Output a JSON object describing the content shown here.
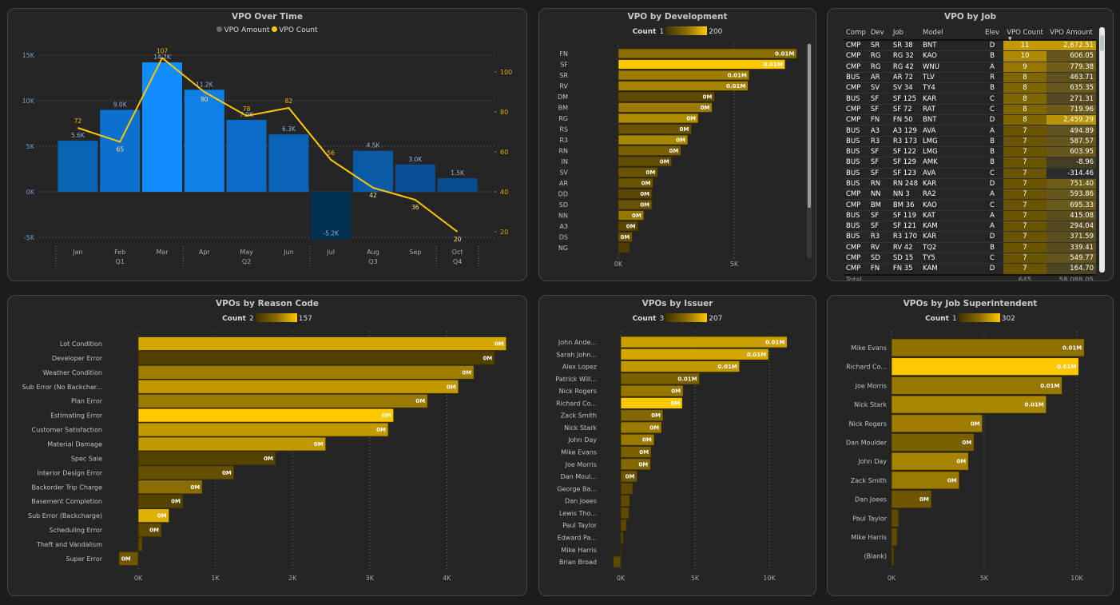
{
  "over_time": {
    "title": "VPO Over Time",
    "legend": [
      {
        "label": "VPO Amount",
        "color": "#6b6b6b"
      },
      {
        "label": "VPO Count",
        "color": "#ffc800"
      }
    ],
    "chart_data": {
      "type": "bar+line",
      "categories": [
        "Jan",
        "Feb",
        "Mar",
        "Apr",
        "May",
        "Jun",
        "Jul",
        "Aug",
        "Sep",
        "Oct"
      ],
      "quarters": [
        {
          "label": "Q1",
          "months": [
            "Jan",
            "Feb",
            "Mar"
          ]
        },
        {
          "label": "Q2",
          "months": [
            "Apr",
            "May",
            "Jun"
          ]
        },
        {
          "label": "Q3",
          "months": [
            "Jul",
            "Aug",
            "Sep"
          ]
        },
        {
          "label": "Q4",
          "months": [
            "Oct"
          ]
        }
      ],
      "series": [
        {
          "name": "VPO Amount",
          "type": "bar",
          "axis": "left",
          "values": [
            5600,
            9000,
            14200,
            11200,
            7900,
            6300,
            -5200,
            4500,
            3000,
            1500
          ],
          "labels": [
            "5.6K",
            "9.0K",
            "14.2K",
            "11.2K",
            "7.9K",
            "6.3K",
            "-5.2K",
            "4.5K",
            "3.0K",
            "1.5K"
          ],
          "colors": [
            "#0a64b4",
            "#0c70cf",
            "#118dff",
            "#0f7fe8",
            "#0b6bc6",
            "#0a63b6",
            "#00304f",
            "#0a5aa6",
            "#095098",
            "#084c8e"
          ]
        },
        {
          "name": "VPO Count",
          "type": "line",
          "axis": "right",
          "values": [
            72,
            65,
            107,
            90,
            78,
            82,
            56,
            42,
            36,
            20
          ],
          "color": "#ffc800"
        }
      ],
      "left_axis": {
        "ticks": [
          15000,
          10000,
          5000,
          0,
          -5000
        ],
        "tick_labels": [
          "15K",
          "10K",
          "5K",
          "0K",
          "-5K"
        ],
        "range": [
          -5000,
          15000
        ]
      },
      "right_axis": {
        "ticks": [
          100,
          80,
          60,
          40,
          20
        ],
        "tick_labels": [
          "100",
          "80",
          "60",
          "40",
          "20"
        ],
        "range": [
          14,
          106
        ]
      },
      "grid": true
    }
  },
  "by_development": {
    "title": "VPO by Development",
    "legend": {
      "label": "Count",
      "min": "1",
      "max": "200"
    },
    "chart_data": {
      "type": "bar",
      "orientation": "horizontal",
      "categories": [
        "FN",
        "SF",
        "SR",
        "RV",
        "DM",
        "BM",
        "RG",
        "RS",
        "R3",
        "RN",
        "IN",
        "SV",
        "AR",
        "DD",
        "SD",
        "NN",
        "A3",
        "DS",
        "NG"
      ],
      "values": [
        7700,
        7200,
        5650,
        5600,
        4150,
        4050,
        3450,
        3150,
        3000,
        2700,
        2300,
        1700,
        1500,
        1450,
        1450,
        1100,
        850,
        600,
        480
      ],
      "data_labels": [
        "0.01M",
        "0.01M",
        "0.01M",
        "0.01M",
        "0M",
        "0M",
        "0M",
        "0M",
        "0M",
        "0M",
        "0M",
        "0M",
        "0M",
        "0M",
        "0M",
        "0M",
        "0M",
        "0M",
        ""
      ],
      "colors": [
        "#8a6d00",
        "#ffc800",
        "#9e7d00",
        "#a68400",
        "#5e4a00",
        "#9a7a00",
        "#b08c00",
        "#6a5300",
        "#a88700",
        "#7a6000",
        "#624d00",
        "#6a5300",
        "#6a5300",
        "#5a4600",
        "#6a5300",
        "#967700",
        "#5a4600",
        "#6a5300",
        "#4e3e00"
      ],
      "x_ticks": [
        0,
        5000
      ],
      "x_tick_labels": [
        "0K",
        "5K"
      ],
      "xlim": [
        0,
        8000
      ],
      "grid": true
    }
  },
  "by_job": {
    "title": "VPO by Job",
    "columns": [
      "Comp",
      "Dev",
      "Job",
      "Model",
      "Elev",
      "VPO Count",
      "VPO Amount"
    ],
    "sort_column": "VPO Count",
    "sort_direction": "descending",
    "rows": [
      [
        "CMP",
        "SR",
        "SR 38",
        "BNT",
        "D",
        11,
        "2,672.51"
      ],
      [
        "CMP",
        "RG",
        "RG 32",
        "KAO",
        "B",
        10,
        "606.05"
      ],
      [
        "CMP",
        "RG",
        "RG 42",
        "WNU",
        "A",
        9,
        "779.38"
      ],
      [
        "BUS",
        "AR",
        "AR 72",
        "TLV",
        "R",
        8,
        "463.71"
      ],
      [
        "CMP",
        "SV",
        "SV 34",
        "TY4",
        "B",
        8,
        "635.35"
      ],
      [
        "BUS",
        "SF",
        "SF 125",
        "KAR",
        "C",
        8,
        "271.31"
      ],
      [
        "CMP",
        "SF",
        "SF 72",
        "RAT",
        "C",
        8,
        "719.96"
      ],
      [
        "CMP",
        "FN",
        "FN 50",
        "BNT",
        "D",
        8,
        "2,459.29"
      ],
      [
        "BUS",
        "A3",
        "A3 129",
        "AVA",
        "A",
        7,
        "494.89"
      ],
      [
        "BUS",
        "R3",
        "R3 173",
        "LMG",
        "B",
        7,
        "587.57"
      ],
      [
        "BUS",
        "SF",
        "SF 122",
        "LMG",
        "B",
        7,
        "603.95"
      ],
      [
        "BUS",
        "SF",
        "SF 129",
        "AMK",
        "B",
        7,
        "-8.96"
      ],
      [
        "BUS",
        "SF",
        "SF 123",
        "AVA",
        "C",
        7,
        "-314.46"
      ],
      [
        "BUS",
        "RN",
        "RN 248",
        "KAR",
        "D",
        7,
        "751.40"
      ],
      [
        "CMP",
        "NN",
        "NN 3",
        "RA2",
        "A",
        7,
        "593.86"
      ],
      [
        "CMP",
        "BM",
        "BM 36",
        "KAO",
        "C",
        7,
        "695.33"
      ],
      [
        "BUS",
        "SF",
        "SF 119",
        "KAT",
        "A",
        7,
        "415.08"
      ],
      [
        "BUS",
        "SF",
        "SF 121",
        "KAM",
        "A",
        7,
        "294.04"
      ],
      [
        "BUS",
        "R3",
        "R3 170",
        "KAR",
        "D",
        7,
        "371.59"
      ],
      [
        "CMP",
        "RV",
        "RV 42",
        "TQ2",
        "B",
        7,
        "339.41"
      ],
      [
        "CMP",
        "SD",
        "SD 15",
        "TY5",
        "C",
        7,
        "549.77"
      ],
      [
        "CMP",
        "FN",
        "FN 35",
        "KAM",
        "D",
        7,
        "164.70"
      ]
    ],
    "total": {
      "label": "Total",
      "count": "645",
      "amount": "58,088.05"
    }
  },
  "by_reason": {
    "title": "VPOs by Reason Code",
    "legend": {
      "label": "Count",
      "min": "2",
      "max": "157"
    },
    "chart_data": {
      "type": "bar",
      "orientation": "horizontal",
      "categories": [
        "Lot Condition",
        "Developer Error",
        "Weather Condition",
        "Sub Error (No Backchar...",
        "Plan Error",
        "Estimating Error",
        "Customer Satisfaction",
        "Material Damage",
        "Spec Sale",
        "Interior Design Error",
        "Backorder Trip Charge",
        "Basement Completion",
        "Sub Error (Backcharge)",
        "Scheduling Error",
        "Theft and Vandalism",
        "Super Error"
      ],
      "values": [
        4770,
        4620,
        4350,
        4150,
        3750,
        3310,
        3240,
        2430,
        1780,
        1240,
        830,
        580,
        400,
        300,
        50,
        -250
      ],
      "data_labels": [
        "0M",
        "0M",
        "0M",
        "0M",
        "0M",
        "0M",
        "0M",
        "0M",
        "0M",
        "0M",
        "0M",
        "0M",
        "0M",
        "0M",
        "",
        "0M"
      ],
      "colors": [
        "#d4a800",
        "#524000",
        "#a07e00",
        "#c29a00",
        "#9a7a00",
        "#ffc800",
        "#c29a00",
        "#c29a00",
        "#554200",
        "#654f00",
        "#8a6d00",
        "#564300",
        "#e0b000",
        "#5e4a00",
        "#5e4a00",
        "#6e5700"
      ],
      "x_ticks": [
        0,
        1000,
        2000,
        3000,
        4000
      ],
      "x_tick_labels": [
        "0K",
        "1K",
        "2K",
        "3K",
        "4K"
      ],
      "xlim": [
        -300,
        4900
      ],
      "grid": true
    }
  },
  "by_issuer": {
    "title": "VPOs by Issuer",
    "legend": {
      "label": "Count",
      "min": "3",
      "max": "207"
    },
    "chart_data": {
      "type": "bar",
      "orientation": "horizontal",
      "categories": [
        "John Ande...",
        "Sarah John...",
        "Alex Lopez",
        "Patrick Will...",
        "Nick Rogers",
        "Richard Co...",
        "Zack Smith",
        "Nick Stark",
        "John Day",
        "Mike Evans",
        "Joe Morris",
        "Dan Moul...",
        "George Ba...",
        "Dan Joees",
        "Lewis Tho...",
        "Paul Taylor",
        "Edward Pa...",
        "Mike Harris",
        "Brian Broad"
      ],
      "values": [
        11200,
        9950,
        8000,
        5300,
        4200,
        4150,
        2850,
        2750,
        2250,
        2050,
        2000,
        1100,
        800,
        600,
        550,
        380,
        170,
        50,
        -500
      ],
      "data_labels": [
        "0.01M",
        "0.01M",
        "0.01M",
        "0.01M",
        "0M",
        "0M",
        "0M",
        "0M",
        "0M",
        "0M",
        "0M",
        "0M",
        "",
        "",
        "",
        "",
        "",
        "",
        ""
      ],
      "colors": [
        "#c9a000",
        "#d4a800",
        "#c29a00",
        "#7a6000",
        "#967700",
        "#ffc800",
        "#836800",
        "#9a7a00",
        "#9a7a00",
        "#7a6000",
        "#836800",
        "#6e5700",
        "#5e4a00",
        "#5e4a00",
        "#5e4a00",
        "#5e4a00",
        "#5a4600",
        "#4e3e00",
        "#5e4a00"
      ],
      "x_ticks": [
        0,
        5000,
        10000
      ],
      "x_tick_labels": [
        "0K",
        "5K",
        "10K"
      ],
      "xlim": [
        -600,
        11500
      ],
      "grid": true
    }
  },
  "by_superintendent": {
    "title": "VPOs by Job Superintendent",
    "legend": {
      "label": "Count",
      "min": "1",
      "max": "302"
    },
    "chart_data": {
      "type": "bar",
      "orientation": "horizontal",
      "categories": [
        "Mike Evans",
        "Richard Co...",
        "Joe Morris",
        "Nick Stark",
        "Nick Rogers",
        "Dan Moulder",
        "John Day",
        "Zack Smith",
        "Dan Joees",
        "Paul Taylor",
        "Mike Harris",
        "(Blank)"
      ],
      "values": [
        10400,
        10100,
        9200,
        8350,
        4900,
        4450,
        4150,
        3650,
        2150,
        380,
        300,
        120
      ],
      "data_labels": [
        "0.01M",
        "0.01M",
        "0.01M",
        "0.01M",
        "0M",
        "0M",
        "0M",
        "0M",
        "0M",
        "",
        "",
        ""
      ],
      "colors": [
        "#8f7100",
        "#ffc800",
        "#967700",
        "#aa8700",
        "#9e7d00",
        "#7a6000",
        "#a68400",
        "#9a7a00",
        "#6e5700",
        "#5e4a00",
        "#5e4a00",
        "#5a4600"
      ],
      "x_ticks": [
        0,
        5000,
        10000
      ],
      "x_tick_labels": [
        "0K",
        "5K",
        "10K"
      ],
      "xlim": [
        0,
        10600
      ],
      "grid": true
    }
  }
}
